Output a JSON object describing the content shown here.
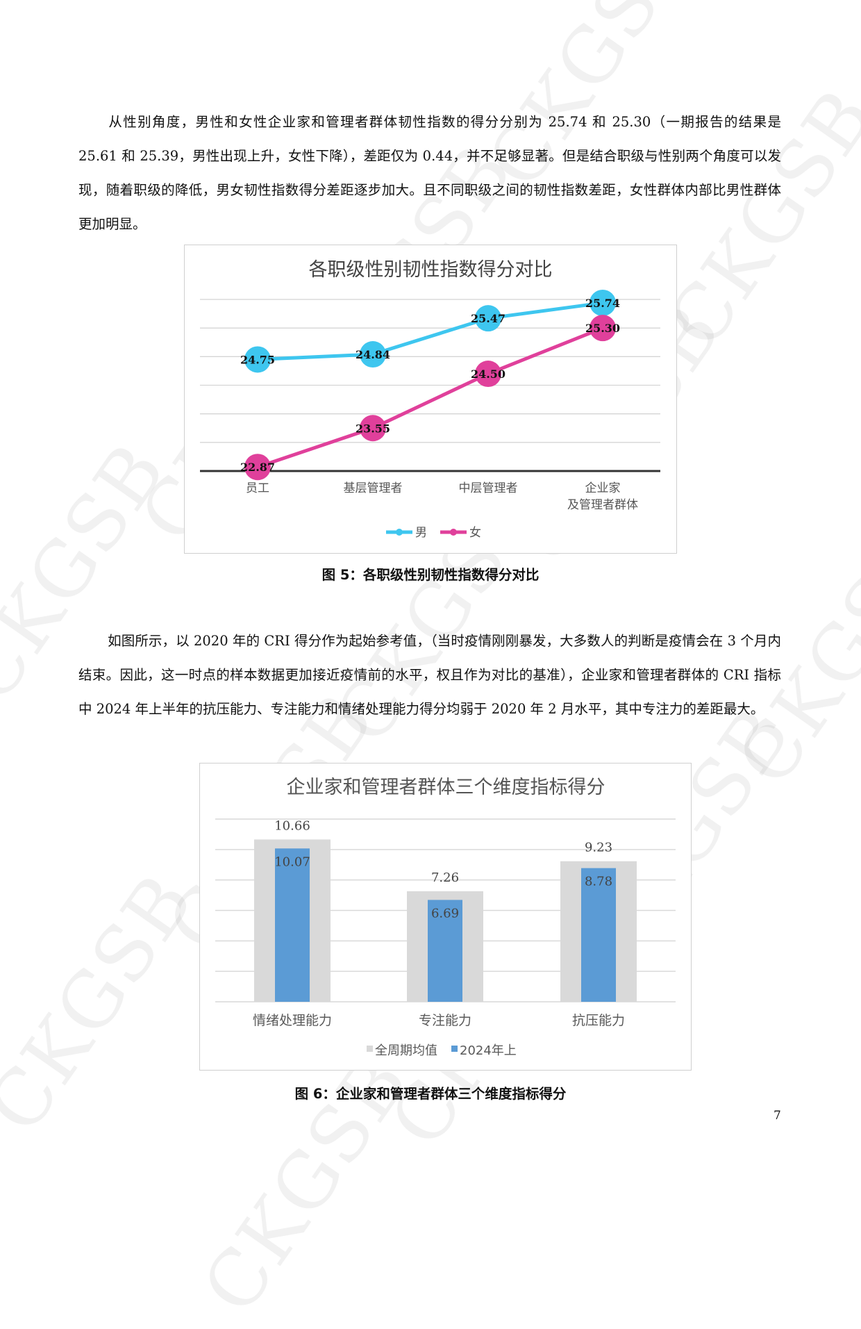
{
  "watermark": "CKGSB",
  "paragraphs": [
    "从性别角度，男性和女性企业家和管理者群体韧性指数的得分分别为 25.74 和 25.30（一期报告的结果是 25.61 和 25.39，男性出现上升，女性下降），差距仅为 0.44，并不足够显著。但是结合职级与性别两个角度可以发现，随着职级的降低，男女韧性指数得分差距逐步加大。且不同职级之间的韧性指数差距，女性群体内部比男性群体更加明显。",
    "如图所示，以 2020 年的 CRI 得分作为起始参考值，（当时疫情刚刚暴发，大多数人的判断是疫情会在 3 个月内结束。因此，这一时点的样本数据更加接近疫情前的水平，权且作为对比的基准），企业家和管理者群体的 CRI 指标中 2024 年上半年的抗压能力、专注能力和情绪处理能力得分均弱于 2020 年 2 月水平，其中专注力的差距最大。"
  ],
  "captions": [
    "图 5：各职级性别韧性指数得分对比",
    "图 6：企业家和管理者群体三个维度指标得分"
  ],
  "page_number": "7",
  "chart_data": [
    {
      "type": "line",
      "title": "各职级性别韧性指数得分对比",
      "categories": [
        [
          "员工"
        ],
        [
          "基层管理者"
        ],
        [
          "中层管理者"
        ],
        [
          "企业家",
          "及管理者群体"
        ]
      ],
      "series": [
        {
          "name": "男",
          "values": [
            24.75,
            24.84,
            25.47,
            25.74
          ],
          "color": "#3ec6ef",
          "labels": [
            "24.75",
            "24.84",
            "25.47",
            "25.74"
          ]
        },
        {
          "name": "女",
          "values": [
            22.87,
            23.55,
            24.5,
            25.3
          ],
          "color": "#e0409b",
          "labels": [
            "22.87",
            "23.55",
            "24.50",
            "25.30"
          ]
        }
      ],
      "ylim": [
        22.8,
        25.8
      ],
      "ytick_step": 0.5,
      "grid": true,
      "legend": "bottom"
    },
    {
      "type": "bar",
      "title": "企业家和管理者群体三个维度指标得分",
      "categories": [
        "情绪处理能力",
        "专注能力",
        "抗压能力"
      ],
      "series": [
        {
          "name": "全周期均值",
          "values": [
            10.66,
            7.26,
            9.23
          ],
          "color": "#d9d9d9",
          "labels": [
            "10.66",
            "7.26",
            "9.23"
          ]
        },
        {
          "name": "2024年上",
          "values": [
            10.07,
            6.69,
            8.78
          ],
          "color": "#5b9bd5",
          "labels": [
            "10.07",
            "6.69",
            "8.78"
          ]
        }
      ],
      "ylim": [
        0,
        12
      ],
      "ytick_step": 2,
      "grid": true,
      "legend": "bottom"
    }
  ]
}
